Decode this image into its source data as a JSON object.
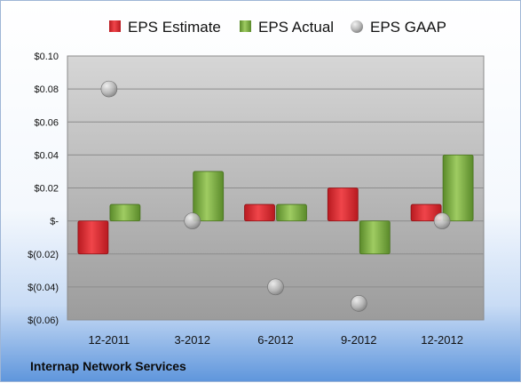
{
  "caption": "Internap Network Services",
  "chart_data": {
    "type": "bar",
    "categories": [
      "12-2011",
      "3-2012",
      "6-2012",
      "9-2012",
      "12-2012"
    ],
    "series": [
      {
        "name": "EPS Estimate",
        "kind": "bar",
        "color": "#d7272d",
        "values": [
          -0.02,
          null,
          0.01,
          0.02,
          0.01
        ]
      },
      {
        "name": "EPS Actual",
        "kind": "bar",
        "color": "#78a842",
        "values": [
          0.01,
          0.03,
          0.01,
          -0.02,
          0.04
        ]
      },
      {
        "name": "EPS GAAP",
        "kind": "marker",
        "color": "#b4b4b4",
        "values": [
          0.08,
          0.0,
          -0.04,
          -0.05,
          0.0
        ]
      }
    ],
    "ylim": [
      -0.06,
      0.1
    ],
    "yticks": [
      0.1,
      0.08,
      0.06,
      0.04,
      0.02,
      0.0,
      -0.02,
      -0.04,
      -0.06
    ],
    "ytick_labels": [
      "$0.10",
      "$0.08",
      "$0.06",
      "$0.04",
      "$0.02",
      "$-",
      "$(0.02)",
      "$(0.04)",
      "$(0.06)"
    ],
    "title": "",
    "xlabel": "",
    "ylabel": "",
    "legend": "top",
    "grid": true
  }
}
